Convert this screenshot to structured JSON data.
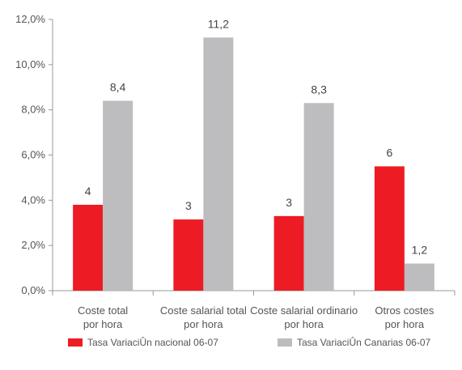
{
  "chart_data": {
    "type": "bar",
    "categories": [
      [
        "Coste total",
        "por hora"
      ],
      [
        "Coste salarial total",
        "por hora"
      ],
      [
        "Coste salarial ordinario",
        "por hora"
      ],
      [
        "Otros costes",
        "por hora"
      ]
    ],
    "series": [
      {
        "name": "Tasa VariaciÛn nacional 06-07",
        "color": "#ed1c24",
        "values": [
          3.8,
          3.15,
          3.3,
          5.5
        ],
        "labels": [
          "4",
          "3",
          "3",
          "6"
        ]
      },
      {
        "name": "Tasa VariaciÛn Canarias 06-07",
        "color": "#bdbdbf",
        "values": [
          8.4,
          11.2,
          8.3,
          1.2
        ],
        "labels": [
          "8,4",
          "11,2",
          "8,3",
          "1,2"
        ]
      }
    ],
    "y_ticks": [
      "0,0%",
      "2,0%",
      "4,0%",
      "6,0%",
      "8,0%",
      "10,0%",
      "12,0%"
    ],
    "ylim": [
      0,
      12
    ],
    "grid": false,
    "legend_position": "bottom"
  }
}
